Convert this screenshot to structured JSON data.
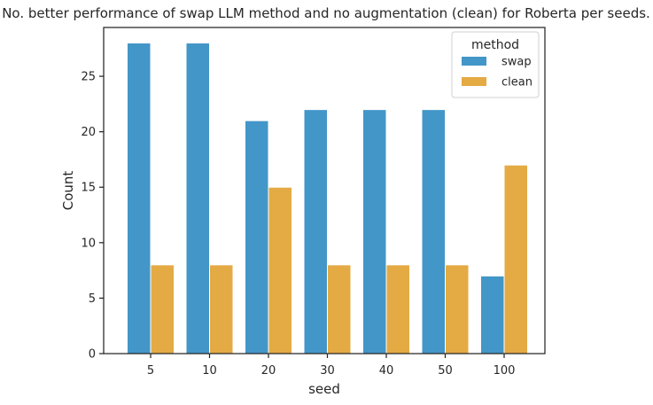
{
  "chart_data": {
    "type": "bar",
    "title": "No. better performance of swap LLM method and no augmentation (clean) for Roberta per seeds.",
    "xlabel": "seed",
    "ylabel": "Count",
    "categories": [
      "5",
      "10",
      "20",
      "30",
      "40",
      "50",
      "100"
    ],
    "series": [
      {
        "name": "swap",
        "color": "#4396c8",
        "values": [
          28,
          28,
          21,
          22,
          22,
          22,
          7
        ]
      },
      {
        "name": "clean",
        "color": "#e4aa44",
        "values": [
          8,
          8,
          15,
          8,
          8,
          8,
          17
        ]
      }
    ],
    "ylim": [
      0,
      29.4
    ],
    "yticks": [
      0,
      5,
      10,
      15,
      20,
      25
    ],
    "legend": {
      "title": "method",
      "placement": "top-right"
    },
    "grid": false
  }
}
